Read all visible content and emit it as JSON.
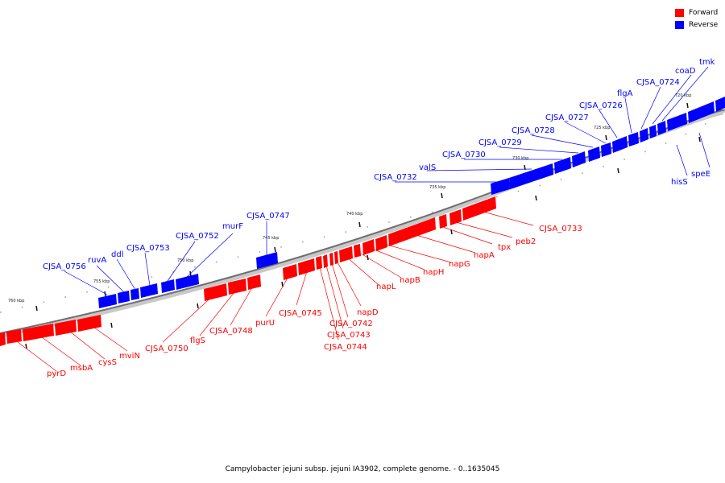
{
  "legend": {
    "forward": {
      "label": "Forward",
      "color": "#ff0000"
    },
    "reverse": {
      "label": "Reverse",
      "color": "#0000ff"
    }
  },
  "caption": "Campylobacter jejuni subsp. jejuni IA3902, complete genome. - 0..1635045",
  "ticks": [
    "760 kbp",
    "755 kbp",
    "750 kbp",
    "745 kbp",
    "740 kbp",
    "735 kbp",
    "730 kbp",
    "725 kbp",
    "720 kbp"
  ],
  "reverse_genes": [
    "tmk",
    "coaD",
    "CJSA_0724",
    "flgA",
    "CJSA_0726",
    "CJSA_0727",
    "CJSA_0728",
    "CJSA_0729",
    "CJSA_0730",
    "valS",
    "CJSA_0732",
    "CJSA_0747",
    "murF",
    "CJSA_0752",
    "CJSA_0753",
    "ddl",
    "ruvA",
    "CJSA_0756",
    "hisS",
    "speE"
  ],
  "forward_genes": [
    "CJSA_0733",
    "peb2",
    "tpx",
    "napA",
    "napG",
    "napH",
    "napB",
    "napL",
    "napD",
    "CJSA_0742",
    "CJSA_0743",
    "CJSA_0744",
    "CJSA_0745",
    "purU",
    "CJSA_0748",
    "flgS",
    "CJSA_0750",
    "mviN",
    "cysS",
    "msbA",
    "pyrD"
  ]
}
